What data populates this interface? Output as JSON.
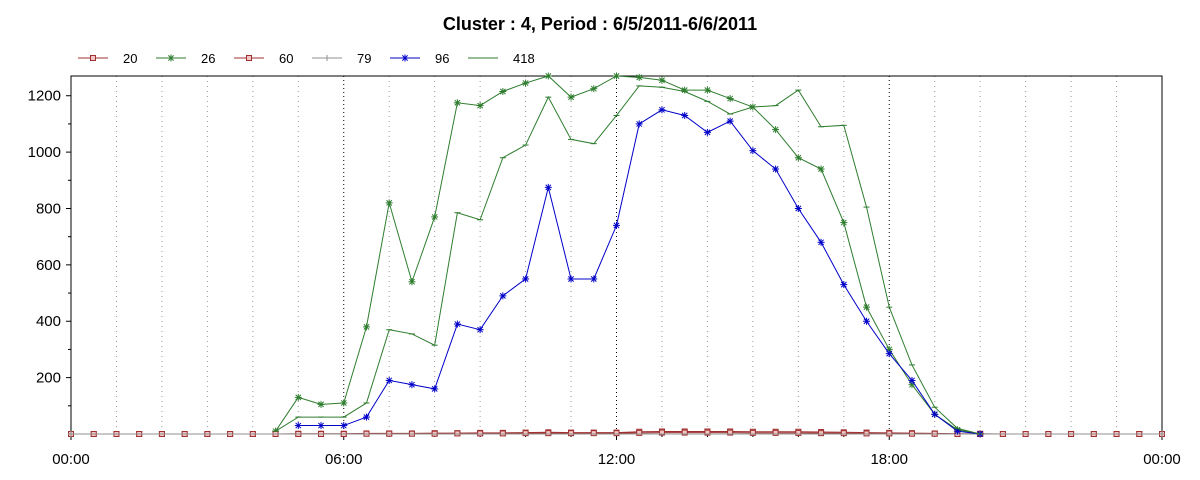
{
  "chart_data": {
    "type": "line",
    "title": "Cluster : 4, Period : 6/5/2011-6/6/2011",
    "xlabel": "",
    "ylabel": "",
    "x_axis": {
      "unit": "hours",
      "range": [
        0,
        24
      ],
      "tick_values": [
        0,
        6,
        12,
        18,
        24
      ],
      "tick_labels": [
        "00:00",
        "06:00",
        "12:00",
        "18:00",
        "00:00"
      ]
    },
    "y_axis": {
      "range": [
        0,
        1270
      ],
      "tick_values": [
        200,
        400,
        600,
        800,
        1000,
        1200
      ],
      "tick_labels": [
        "200",
        "400",
        "600",
        "800",
        "1000",
        "1200"
      ]
    },
    "grid": {
      "x": "dotted",
      "y": "none"
    },
    "legend": {
      "position": "top-left",
      "orientation": "horizontal"
    },
    "series": [
      {
        "name": "20",
        "color": "#a03030",
        "marker": "square",
        "x": [
          0,
          0.5,
          1,
          1.5,
          2,
          2.5,
          3,
          3.5,
          4,
          4.5,
          5,
          5.5,
          6,
          6.5,
          7,
          7.5,
          8,
          8.5,
          9,
          9.5,
          10,
          10.5,
          11,
          11.5,
          12,
          12.5,
          13,
          13.5,
          14,
          14.5,
          15,
          15.5,
          16,
          16.5,
          17,
          17.5,
          18,
          18.5,
          19,
          19.5,
          20,
          20.5,
          21,
          21.5,
          22,
          22.5,
          23,
          23.5,
          24
        ],
        "y": [
          0,
          0,
          0,
          0,
          0,
          0,
          0,
          0,
          0,
          0,
          1,
          1,
          1,
          2,
          2,
          2,
          3,
          3,
          4,
          4,
          5,
          6,
          5,
          5,
          5,
          8,
          9,
          9,
          9,
          9,
          8,
          8,
          8,
          7,
          6,
          5,
          4,
          3,
          2,
          1,
          1,
          0,
          0,
          0,
          0,
          0,
          0,
          0,
          0
        ]
      },
      {
        "name": "26",
        "color": "#2e7d2e",
        "marker": "star",
        "x": [
          4.5,
          5,
          5.5,
          6,
          6.5,
          7,
          7.5,
          8,
          8.5,
          9,
          9.5,
          10,
          10.5,
          11,
          11.5,
          12,
          12.5,
          13,
          13.5,
          14,
          14.5,
          15,
          15.5,
          16,
          16.5,
          17,
          17.5,
          18,
          18.5,
          19,
          19.5,
          20
        ],
        "y": [
          10,
          130,
          105,
          110,
          380,
          820,
          540,
          770,
          1175,
          1165,
          1215,
          1245,
          1270,
          1195,
          1225,
          1270,
          1265,
          1255,
          1220,
          1220,
          1190,
          1160,
          1080,
          980,
          940,
          750,
          450,
          300,
          175,
          70,
          15,
          0
        ]
      },
      {
        "name": "60",
        "color": "#a03030",
        "marker": "square",
        "x": [
          0,
          0.5,
          1,
          1.5,
          2,
          2.5,
          3,
          3.5,
          4,
          4.5,
          5,
          5.5,
          6,
          6.5,
          7,
          7.5,
          8,
          8.5,
          9,
          9.5,
          10,
          10.5,
          11,
          11.5,
          12,
          12.5,
          13,
          13.5,
          14,
          14.5,
          15,
          15.5,
          16,
          16.5,
          17,
          17.5,
          18,
          18.5,
          19,
          19.5,
          20,
          20.5,
          21,
          21.5,
          22,
          22.5,
          23,
          23.5,
          24
        ],
        "y": [
          0,
          0,
          0,
          0,
          0,
          0,
          0,
          0,
          0,
          0,
          0,
          0,
          0,
          1,
          1,
          1,
          1,
          2,
          2,
          2,
          3,
          3,
          3,
          3,
          3,
          4,
          5,
          5,
          5,
          5,
          4,
          4,
          4,
          3,
          3,
          2,
          2,
          1,
          1,
          0,
          0,
          0,
          0,
          0,
          0,
          0,
          0,
          0,
          0
        ]
      },
      {
        "name": "79",
        "color": "#909090",
        "marker": "plus",
        "x": [
          0,
          24
        ],
        "y": [
          0,
          0
        ]
      },
      {
        "name": "96",
        "color": "#0000c8",
        "marker": "star",
        "x": [
          5,
          5.5,
          6,
          6.5,
          7,
          7.5,
          8,
          8.5,
          9,
          9.5,
          10,
          10.5,
          11,
          11.5,
          12,
          12.5,
          13,
          13.5,
          14,
          14.5,
          15,
          15.5,
          16,
          16.5,
          17,
          17.5,
          18,
          18.5,
          19,
          19.5,
          20
        ],
        "y": [
          30,
          30,
          30,
          60,
          190,
          175,
          160,
          390,
          370,
          490,
          550,
          875,
          550,
          550,
          740,
          1100,
          1150,
          1130,
          1070,
          1110,
          1005,
          940,
          800,
          680,
          530,
          400,
          285,
          190,
          70,
          10,
          0
        ]
      },
      {
        "name": "418",
        "color": "#2e7d2e",
        "marker": "tick",
        "x": [
          4.5,
          5,
          5.5,
          6,
          6.5,
          7,
          7.5,
          8,
          8.5,
          9,
          9.5,
          10,
          10.5,
          11,
          11.5,
          12,
          12.5,
          13,
          13.5,
          14,
          14.5,
          15,
          15.5,
          16,
          16.5,
          17,
          17.5,
          18,
          18.5,
          19,
          19.5,
          20
        ],
        "y": [
          10,
          60,
          60,
          60,
          110,
          370,
          355,
          315,
          785,
          760,
          980,
          1025,
          1195,
          1045,
          1030,
          1130,
          1235,
          1230,
          1215,
          1180,
          1135,
          1160,
          1165,
          1220,
          1090,
          1095,
          805,
          450,
          245,
          95,
          20,
          0
        ]
      }
    ]
  }
}
